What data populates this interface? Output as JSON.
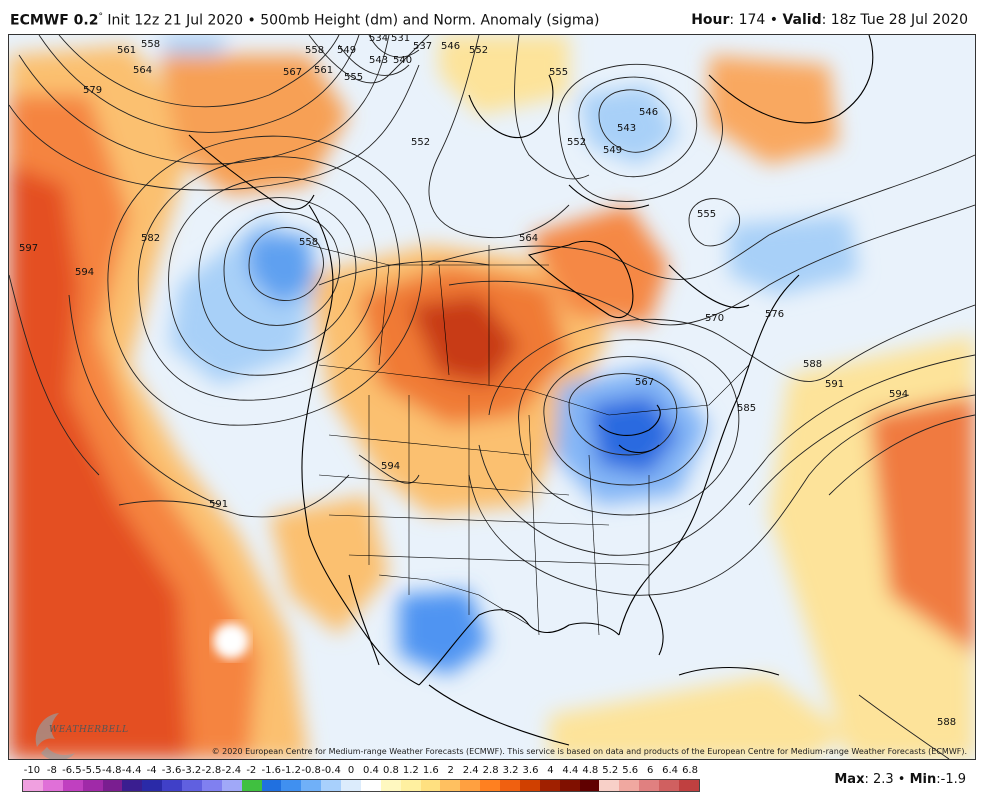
{
  "header": {
    "model": "ECMWF 0.2",
    "model_sup": "°",
    "init_text": " Init 12z 21 Jul 2020 • 500mb Height (dm) and Norm. Anomaly (sigma)",
    "hour_label": "Hour",
    "hour_value": ": 174 • ",
    "valid_label": "Valid",
    "valid_value": ": 18z Tue 28 Jul 2020"
  },
  "copyright": "© 2020 European Centre for Medium-range Weather Forecasts (ECMWF). This service is based on data and products of the European Centre for Medium-range Weather Forecasts (ECMWF).",
  "logo_text": "WEATHERBELL",
  "stats": {
    "max_label": "Max",
    "max_value": ": 2.3 • ",
    "min_label": "Min",
    "min_value": ":-1.9"
  },
  "legend": {
    "labels": [
      "-10",
      "-8",
      "-6.5",
      "-5.5",
      "-4.8",
      "-4.4",
      "-4",
      "-3.6",
      "-3.2",
      "-2.8",
      "-2.4",
      "-2",
      "-1.6",
      "-1.2",
      "-0.8",
      "-0.4",
      "0",
      "0.4",
      "0.8",
      "1.2",
      "1.6",
      "2",
      "2.4",
      "2.8",
      "3.2",
      "3.6",
      "4",
      "4.4",
      "4.8",
      "5.2",
      "5.6",
      "6",
      "6.4",
      "6.8"
    ],
    "colors": [
      "#f0a0e0",
      "#e070d8",
      "#c040c0",
      "#a02aa8",
      "#7a1e90",
      "#3a1e90",
      "#2a2aa8",
      "#4040c8",
      "#6060e0",
      "#8080f0",
      "#a0a8f8",
      "#40c040",
      "#2070e0",
      "#4090f0",
      "#70b0f8",
      "#a8d0fc",
      "#dcecfc",
      "#ffffff",
      "#fff8c0",
      "#fff0a0",
      "#ffe080",
      "#ffc060",
      "#ffa040",
      "#ff8020",
      "#f06010",
      "#d04000",
      "#a02000",
      "#801000",
      "#600000",
      "#f8d0c8",
      "#f0a8a0",
      "#e08080",
      "#d06060",
      "#c04040"
    ]
  },
  "contours": [
    {
      "label": "558"
    },
    {
      "label": "561"
    },
    {
      "label": "564"
    },
    {
      "label": "579"
    },
    {
      "label": "567"
    },
    {
      "label": "558"
    },
    {
      "label": "561"
    },
    {
      "label": "555"
    },
    {
      "label": "549"
    },
    {
      "label": "543"
    },
    {
      "label": "540"
    },
    {
      "label": "537"
    },
    {
      "label": "534"
    },
    {
      "label": "531"
    },
    {
      "label": "546"
    },
    {
      "label": "552"
    },
    {
      "label": "555"
    },
    {
      "label": "546"
    },
    {
      "label": "543"
    },
    {
      "label": "549"
    },
    {
      "label": "552"
    },
    {
      "label": "555"
    },
    {
      "label": "552"
    },
    {
      "label": "564"
    },
    {
      "label": "597"
    },
    {
      "label": "594"
    },
    {
      "label": "582"
    },
    {
      "label": "558"
    },
    {
      "label": "570"
    },
    {
      "label": "576"
    },
    {
      "label": "567"
    },
    {
      "label": "588"
    },
    {
      "label": "591"
    },
    {
      "label": "594"
    },
    {
      "label": "585"
    },
    {
      "label": "594"
    },
    {
      "label": "591"
    },
    {
      "label": "588"
    }
  ]
}
